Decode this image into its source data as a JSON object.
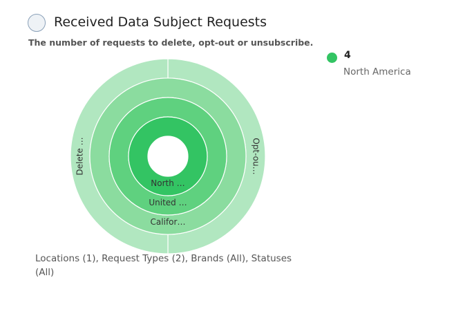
{
  "header": {
    "title": "Received Data Subject Requests",
    "subtitle": "The number of requests to delete, opt-out or unsubscribe."
  },
  "legend": {
    "items": [
      {
        "count": "4",
        "name": "North America",
        "color": "#33c463"
      }
    ]
  },
  "chart_data": {
    "type": "sunburst",
    "rings": [
      {
        "segments": [
          {
            "label": "North …",
            "value": 4
          }
        ],
        "color": "#33c463"
      },
      {
        "segments": [
          {
            "label": "United …",
            "value": 4
          }
        ],
        "color": "#5fd17f"
      },
      {
        "segments": [
          {
            "label": "Califor…",
            "value": 4
          }
        ],
        "color": "#8bdc9f"
      },
      {
        "segments": [
          {
            "label": "Delete …",
            "value": 2
          },
          {
            "label": "Opt-ou…",
            "value": 2
          }
        ],
        "color": "#b1e7c0"
      }
    ]
  },
  "filters": {
    "text": "Locations (1), Request Types (2), Brands (All), Statuses (All)"
  }
}
